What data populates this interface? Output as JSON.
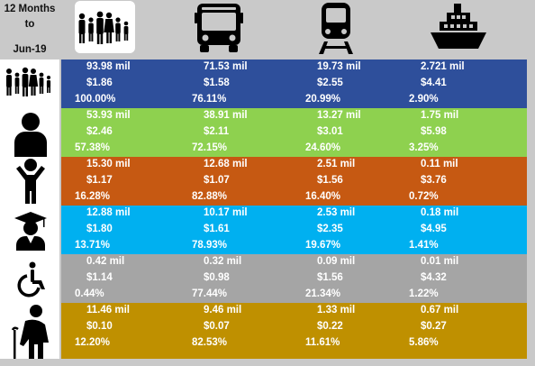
{
  "period": {
    "line1": "12 Months",
    "line2": "to",
    "line3": "Jun-19"
  },
  "columns": [
    {
      "icon": "family-icon"
    },
    {
      "icon": "bus-icon"
    },
    {
      "icon": "train-icon"
    },
    {
      "icon": "ferry-icon"
    }
  ],
  "rows": [
    {
      "icon": "family-icon",
      "color": "#2e4f9b",
      "cells": [
        {
          "trips": "93.98 mil",
          "avg": "$1.86",
          "pct": "100.00%"
        },
        {
          "trips": "71.53 mil",
          "avg": "$1.58",
          "pct": "76.11%"
        },
        {
          "trips": "19.73 mil",
          "avg": "$2.55",
          "pct": "20.99%"
        },
        {
          "trips": "2.721 mil",
          "avg": "$4.41",
          "pct": "2.90%"
        }
      ]
    },
    {
      "icon": "adult-icon",
      "color": "#8ed14f",
      "cells": [
        {
          "trips": "53.93 mil",
          "avg": "$2.46",
          "pct": "57.38%"
        },
        {
          "trips": "38.91 mil",
          "avg": "$2.11",
          "pct": "72.15%"
        },
        {
          "trips": "13.27 mil",
          "avg": "$3.01",
          "pct": "24.60%"
        },
        {
          "trips": "1.75 mil",
          "avg": "$5.98",
          "pct": "3.25%"
        }
      ]
    },
    {
      "icon": "child-icon",
      "color": "#c65912",
      "cells": [
        {
          "trips": "15.30 mil",
          "avg": "$1.17",
          "pct": "16.28%"
        },
        {
          "trips": "12.68 mil",
          "avg": "$1.07",
          "pct": "82.88%"
        },
        {
          "trips": "2.51 mil",
          "avg": "$1.56",
          "pct": "16.40%"
        },
        {
          "trips": "0.11 mil",
          "avg": "$3.76",
          "pct": "0.72%"
        }
      ]
    },
    {
      "icon": "graduate-icon",
      "color": "#00b0f0",
      "cells": [
        {
          "trips": "12.88 mil",
          "avg": "$1.80",
          "pct": "13.71%"
        },
        {
          "trips": "10.17 mil",
          "avg": "$1.61",
          "pct": "78.93%"
        },
        {
          "trips": "2.53 mil",
          "avg": "$2.35",
          "pct": "19.67%"
        },
        {
          "trips": "0.18 mil",
          "avg": "$4.95",
          "pct": "1.41%"
        }
      ]
    },
    {
      "icon": "wheelchair-icon",
      "color": "#a5a5a5",
      "cells": [
        {
          "trips": "0.42 mil",
          "avg": "$1.14",
          "pct": "0.44%"
        },
        {
          "trips": "0.32 mil",
          "avg": "$0.98",
          "pct": "77.44%"
        },
        {
          "trips": "0.09 mil",
          "avg": "$1.56",
          "pct": "21.34%"
        },
        {
          "trips": "0.01 mil",
          "avg": "$4.32",
          "pct": "1.22%"
        }
      ]
    },
    {
      "icon": "senior-icon",
      "color": "#bf9000",
      "cells": [
        {
          "trips": "11.46 mil",
          "avg": "$0.10",
          "pct": "12.20%"
        },
        {
          "trips": "9.46 mil",
          "avg": "$0.07",
          "pct": "82.53%"
        },
        {
          "trips": "1.33 mil",
          "avg": "$0.22",
          "pct": "11.61%"
        },
        {
          "trips": "0.67 mil",
          "avg": "$0.27",
          "pct": "5.86%"
        }
      ]
    }
  ]
}
